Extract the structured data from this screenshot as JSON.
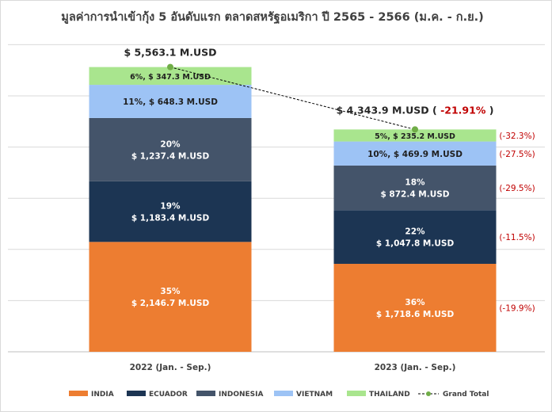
{
  "chart_data": {
    "type": "bar",
    "stacked": true,
    "title": "มูลค่าการนำเข้ากุ้ง 5 อันดับแรก ตลาดสหรัฐอเมริกา ปี 2565 - 2566 (ม.ค. - ก.ย.)",
    "categories": [
      "2022 (Jan. - Sep.)",
      "2023 (Jan. - Sep.)"
    ],
    "unit": "M.USD",
    "ylim": [
      0,
      6500
    ],
    "grid": true,
    "legend_position": "bottom",
    "series": [
      {
        "name": "INDIA",
        "color": "#ED7D31",
        "values": [
          2146.7,
          1718.6
        ],
        "labels": [
          "35%\n$ 2,146.7  M.USD",
          "36%\n$ 1,718.6  M.USD"
        ],
        "label_color": "#ffffff"
      },
      {
        "name": "ECUADOR",
        "color": "#1C3553",
        "values": [
          1183.4,
          1047.8
        ],
        "labels": [
          "19%\n$ 1,183.4  M.USD",
          "22%\n$ 1,047.8  M.USD"
        ],
        "label_color": "#ffffff"
      },
      {
        "name": "INDONESIA",
        "color": "#44546A",
        "values": [
          1237.4,
          872.4
        ],
        "labels": [
          "20%\n$ 1,237.4  M.USD",
          "18%\n$ 872.4  M.USD"
        ],
        "label_color": "#ffffff"
      },
      {
        "name": "VIETNAM",
        "color": "#9DC3F5",
        "values": [
          648.3,
          469.9
        ],
        "labels": [
          "11%, $ 648.3  M.USD",
          "10%, $ 469.9  M.USD"
        ],
        "label_color": "#1F1F1F"
      },
      {
        "name": "THAILAND",
        "color": "#A9E58E",
        "values": [
          347.3,
          235.2
        ],
        "labels": [
          "6%, $ 347.3  M.USD",
          "5%, $ 235.2  M.USD"
        ],
        "label_color": "#1F1F1F"
      }
    ],
    "grand_total": {
      "name": "Grand Total",
      "values": [
        5563.1,
        4343.9
      ],
      "labels": [
        "$ 5,563.1  M.USD",
        "$ 4,343.9  M.USD"
      ],
      "change_label": "-21.91%",
      "marker_color": "#70AD47"
    },
    "change_labels": [
      "(-19.9%)",
      "(-11.5%)",
      "(-29.5%)",
      "(-27.5%)",
      "(-32.3%)"
    ],
    "change_color": "#C00000"
  }
}
